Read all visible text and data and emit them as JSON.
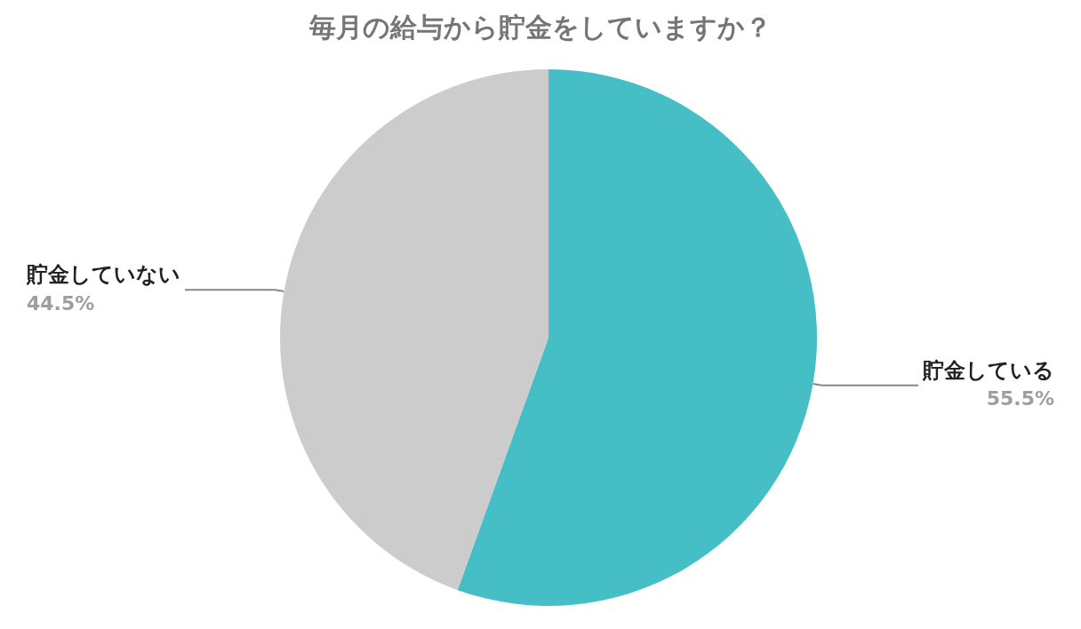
{
  "chart_data": {
    "type": "pie",
    "title": "毎月の給与から貯金をしていますか？",
    "categories": [
      "貯金している",
      "貯金していない"
    ],
    "values": [
      55.5,
      44.5
    ],
    "colors": [
      "#45bec6",
      "#cccccc"
    ],
    "value_labels": [
      "55.5%",
      "44.5%"
    ],
    "legend": false
  }
}
